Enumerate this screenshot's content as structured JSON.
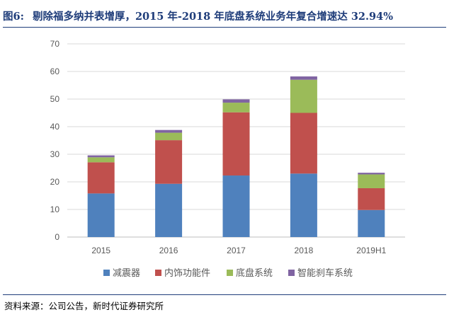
{
  "figure": {
    "number": "图6:",
    "title": "剔除福多纳并表增厚，2015 年-2018 年底盘系统业务年复合增速达 32.94%"
  },
  "source": "资料来源：公司公告，新时代证券研究所",
  "colors": {
    "title": "#1f3d7a",
    "shock_absorber": "#4f81bd",
    "interior_parts": "#c0504d",
    "chassis_system": "#9bbb59",
    "smart_brake": "#8064a2",
    "grid": "#d9d9d9"
  },
  "chart_data": {
    "type": "bar",
    "stacked": true,
    "categories": [
      "2015",
      "2016",
      "2017",
      "2018",
      "2019H1"
    ],
    "series": [
      {
        "name": "减震器",
        "color": "#4f81bd",
        "values": [
          15.8,
          19.3,
          22.3,
          23.0,
          9.8
        ]
      },
      {
        "name": "内饰功能件",
        "color": "#c0504d",
        "values": [
          11.3,
          15.8,
          22.9,
          22.0,
          7.9
        ]
      },
      {
        "name": "底盘系统",
        "color": "#9bbb59",
        "values": [
          1.8,
          2.7,
          3.5,
          12.0,
          5.0
        ]
      },
      {
        "name": "智能刹车系统",
        "color": "#8064a2",
        "values": [
          0.7,
          1.0,
          1.2,
          1.2,
          0.6
        ]
      }
    ],
    "ylim": [
      0,
      70
    ],
    "yticks": [
      "0",
      "10",
      "20",
      "30",
      "40",
      "50",
      "60",
      "70"
    ],
    "grid": true,
    "legend": "bottom"
  }
}
